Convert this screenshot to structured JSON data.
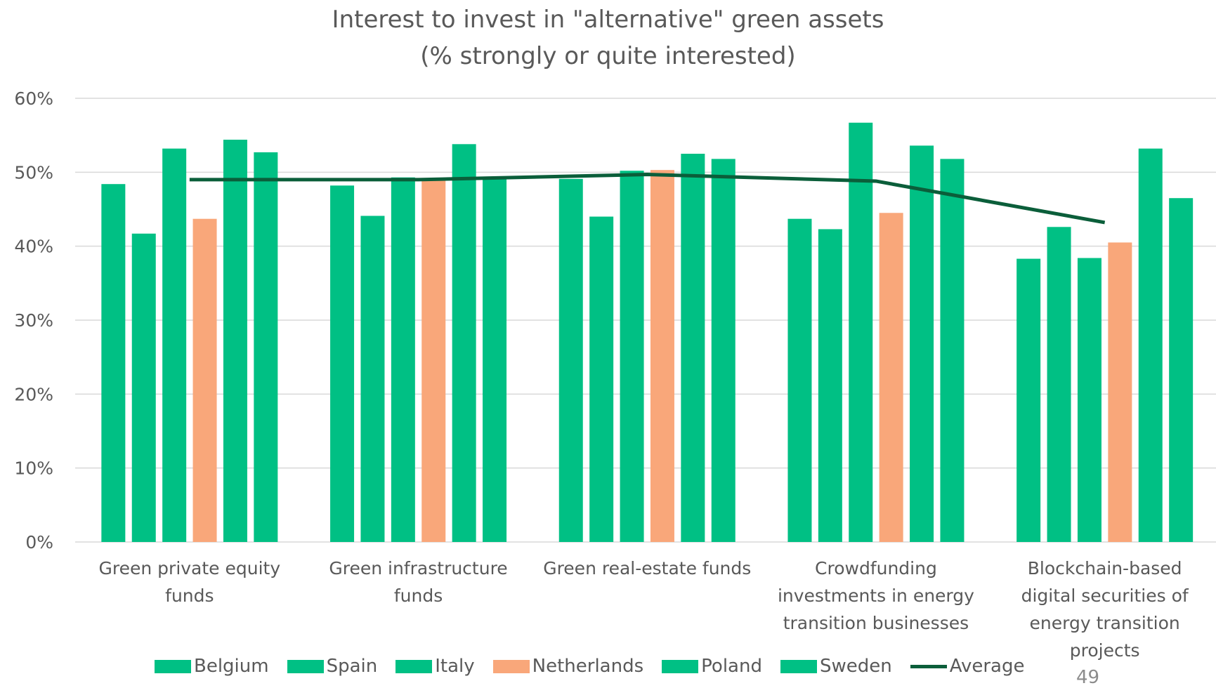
{
  "chart_data": {
    "type": "bar",
    "title": "Interest to invest in \"alternative\" green assets",
    "subtitle": "(% strongly or quite interested)",
    "categories": [
      "Green private equity funds",
      "Green infrastructure funds",
      "Green real-estate funds",
      "Crowdfunding investments in energy transition businesses",
      "Blockchain-based digital securities of energy transition projects"
    ],
    "series": [
      {
        "name": "Belgium",
        "color": "#00c084",
        "values": [
          48.4,
          48.2,
          49.1,
          43.7,
          38.3
        ]
      },
      {
        "name": "Spain",
        "color": "#00c084",
        "values": [
          41.7,
          44.1,
          44.0,
          42.3,
          42.6
        ]
      },
      {
        "name": "Italy",
        "color": "#00c084",
        "values": [
          53.2,
          49.3,
          50.2,
          56.7,
          38.4
        ]
      },
      {
        "name": "Netherlands",
        "color": "#f9a77a",
        "values": [
          43.7,
          48.9,
          50.3,
          44.5,
          40.5
        ]
      },
      {
        "name": "Poland",
        "color": "#00c084",
        "values": [
          54.4,
          53.8,
          52.5,
          53.6,
          53.2
        ]
      },
      {
        "name": "Sweden",
        "color": "#00c084",
        "values": [
          52.7,
          49.3,
          51.8,
          51.8,
          46.5
        ]
      },
      {
        "name": "Average",
        "type": "line",
        "color": "#0b5e3a",
        "values": [
          49.0,
          49.0,
          49.7,
          48.8,
          43.2
        ]
      }
    ],
    "ylim": [
      0,
      60
    ],
    "yticks": [
      {
        "value": 0,
        "label": "0%"
      },
      {
        "value": 10,
        "label": "10%"
      },
      {
        "value": 20,
        "label": "20%"
      },
      {
        "value": 30,
        "label": "30%"
      },
      {
        "value": 40,
        "label": "40%"
      },
      {
        "value": 50,
        "label": "50%"
      },
      {
        "value": 60,
        "label": "60%"
      }
    ],
    "grid": true,
    "legend": "bottom"
  },
  "page_number": "49"
}
